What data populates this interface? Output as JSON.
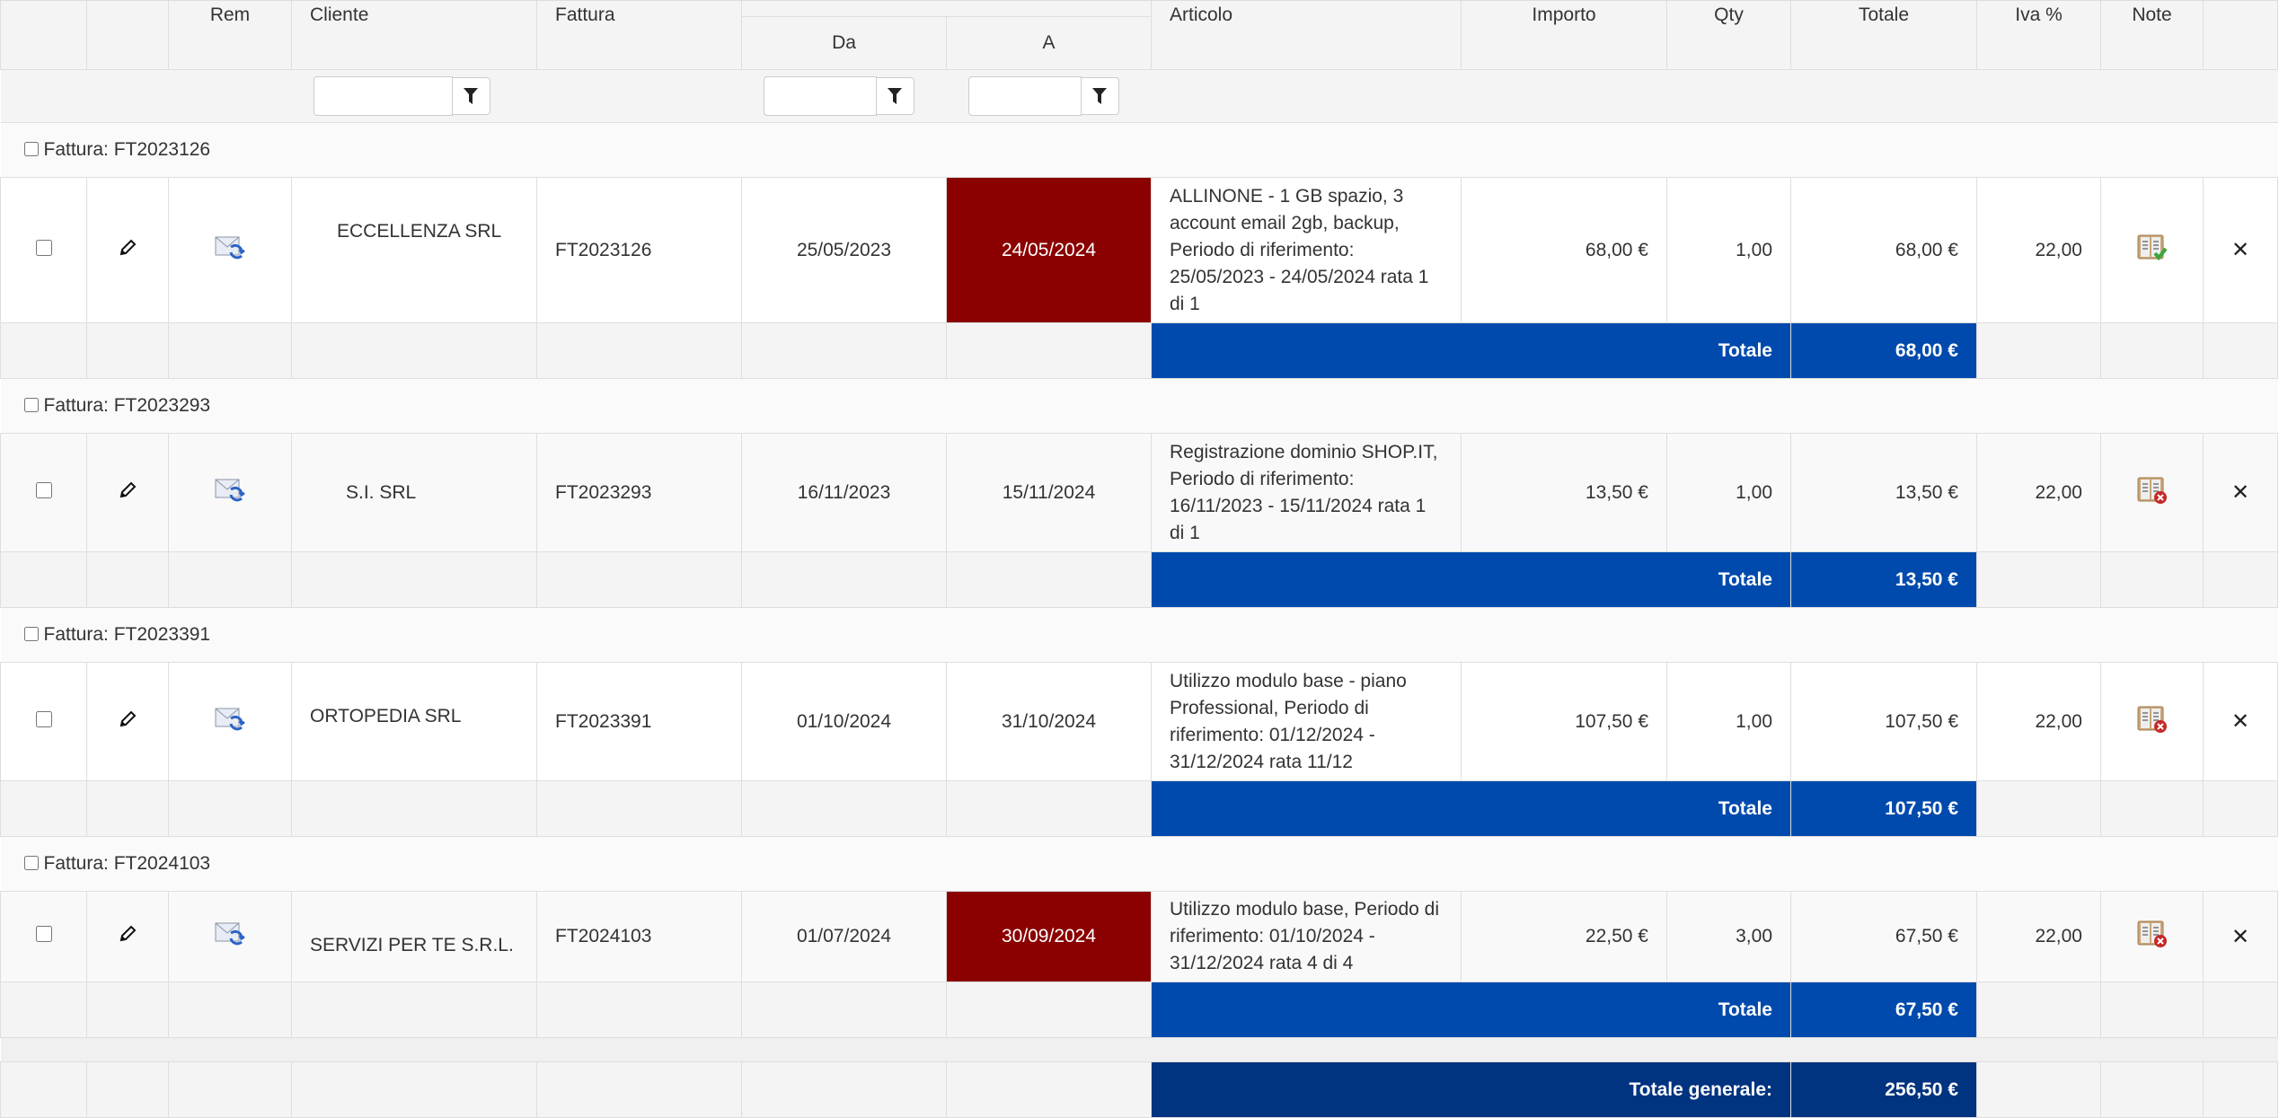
{
  "header": {
    "rem": "Rem",
    "cliente": "Cliente",
    "fattura": "Fattura",
    "da": "Da",
    "a": "A",
    "articolo": "Articolo",
    "importo": "Importo",
    "qty": "Qty",
    "totale": "Totale",
    "iva": "Iva %",
    "note": "Note"
  },
  "filters": {
    "cliente": "",
    "da": "",
    "a": "",
    "icon": "filter-icon"
  },
  "colors": {
    "expired": "#8b0000",
    "subtotal": "#004aad",
    "grand_total": "#003380"
  },
  "groups": [
    {
      "label": "Fattura: FT2023126",
      "row": {
        "cliente": "ECCELLENZA  SRL",
        "fattura": "FT2023126",
        "da": "25/05/2023",
        "a": "24/05/2024",
        "a_expired": true,
        "articolo": "ALLINONE - 1 GB spazio, 3 account email 2gb, backup, Periodo di riferimento: 25/05/2023 - 24/05/2024 rata 1 di 1",
        "importo": "68,00 €",
        "qty": "1,00",
        "totale": "68,00 €",
        "iva": "22,00",
        "note_icon": "note-ok-icon"
      },
      "total_label": "Totale",
      "total": "68,00 €"
    },
    {
      "label": "Fattura: FT2023293",
      "row": {
        "cliente": "S.I. SRL",
        "fattura": "FT2023293",
        "da": "16/11/2023",
        "a": "15/11/2024",
        "a_expired": false,
        "articolo": "Registrazione dominio SHOP.IT, Periodo di riferimento: 16/11/2023 - 15/11/2024 rata 1 di 1",
        "importo": "13,50 €",
        "qty": "1,00",
        "totale": "13,50 €",
        "iva": "22,00",
        "note_icon": "note-missing-icon"
      },
      "total_label": "Totale",
      "total": "13,50 €"
    },
    {
      "label": "Fattura: FT2023391",
      "row": {
        "cliente": "ORTOPEDIA   SRL",
        "fattura": "FT2023391",
        "da": "01/10/2024",
        "a": "31/10/2024",
        "a_expired": false,
        "articolo": "Utilizzo modulo base - piano Professional, Periodo di riferimento: 01/12/2024 - 31/12/2024 rata 11/12",
        "importo": "107,50 €",
        "qty": "1,00",
        "totale": "107,50 €",
        "iva": "22,00",
        "note_icon": "note-missing-icon"
      },
      "total_label": "Totale",
      "total": "107,50 €"
    },
    {
      "label": "Fattura: FT2024103",
      "row": {
        "cliente": "SERVIZI PER TE S.R.L.",
        "fattura": "FT2024103",
        "da": "01/07/2024",
        "a": "30/09/2024",
        "a_expired": true,
        "articolo": "Utilizzo modulo base, Periodo di riferimento: 01/10/2024 - 31/12/2024 rata 4 di 4",
        "importo": "22,50 €",
        "qty": "3,00",
        "totale": "67,50 €",
        "iva": "22,00",
        "note_icon": "note-missing-icon"
      },
      "total_label": "Totale",
      "total": "67,50 €"
    }
  ],
  "grand_total": {
    "label": "Totale generale:",
    "value": "256,50 €"
  }
}
